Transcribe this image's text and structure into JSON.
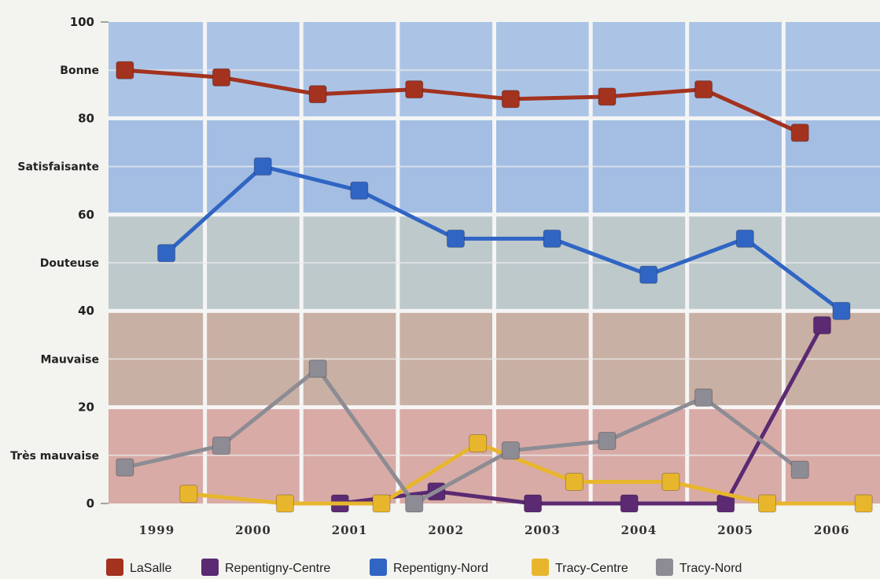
{
  "chart_data": {
    "type": "line",
    "title": "",
    "xlabel": "",
    "ylabel": "",
    "x": [
      "1999",
      "2000",
      "2001",
      "2002",
      "2003",
      "2004",
      "2005",
      "2006"
    ],
    "ylim": [
      0,
      100
    ],
    "yticks": [
      "0",
      "20",
      "40",
      "60",
      "80",
      "100"
    ],
    "grid": true,
    "legend_position": "bottom",
    "bands": [
      {
        "label": "Bonne",
        "from": 80,
        "to": 100,
        "color": "#abc4e6"
      },
      {
        "label": "Satisfaisante",
        "from": 60,
        "to": 80,
        "color": "#a3bde3"
      },
      {
        "label": "Douteuse",
        "from": 40,
        "to": 60,
        "color": "#bec9cc"
      },
      {
        "label": "Mauvaise",
        "from": 20,
        "to": 40,
        "color": "#c9b0a4"
      },
      {
        "label": "Très mauvaise",
        "from": 0,
        "to": 20,
        "color": "#d8aba6"
      }
    ],
    "series": [
      {
        "name": "LaSalle",
        "color": "#a3321f",
        "values": [
          90,
          88.5,
          85,
          86,
          84,
          84.5,
          86,
          77
        ]
      },
      {
        "name": "Repentigny-Centre",
        "color": "#5b2a73",
        "values": [
          null,
          null,
          0,
          2.5,
          0,
          0,
          0,
          37
        ]
      },
      {
        "name": "Repentigny-Nord",
        "color": "#3065c4",
        "values": [
          52,
          70,
          65,
          55,
          55,
          47.5,
          55,
          40
        ]
      },
      {
        "name": "Tracy-Centre",
        "color": "#e8b62d",
        "values": [
          2,
          0,
          0,
          12.5,
          4.5,
          4.5,
          0,
          0
        ]
      },
      {
        "name": "Tracy-Nord",
        "color": "#8d8c94",
        "values": [
          7.5,
          12,
          28,
          0,
          11,
          13,
          22,
          7
        ]
      }
    ]
  }
}
